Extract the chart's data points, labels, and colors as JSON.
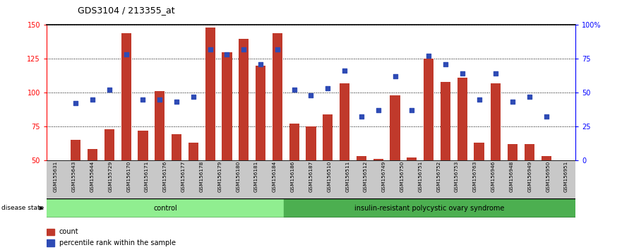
{
  "title": "GDS3104 / 213355_at",
  "samples": [
    "GSM155631",
    "GSM155643",
    "GSM155644",
    "GSM155729",
    "GSM156170",
    "GSM156171",
    "GSM156176",
    "GSM156177",
    "GSM156178",
    "GSM156179",
    "GSM156180",
    "GSM156181",
    "GSM156184",
    "GSM156186",
    "GSM156187",
    "GSM156510",
    "GSM156511",
    "GSM156512",
    "GSM156749",
    "GSM156750",
    "GSM156751",
    "GSM156752",
    "GSM156753",
    "GSM156763",
    "GSM156946",
    "GSM156948",
    "GSM156949",
    "GSM156950",
    "GSM156951"
  ],
  "bar_values": [
    65,
    58,
    73,
    144,
    72,
    101,
    69,
    63,
    148,
    130,
    140,
    120,
    144,
    77,
    75,
    84,
    107,
    53,
    51,
    98,
    52,
    125,
    108,
    111,
    63,
    107,
    62,
    62,
    53
  ],
  "dot_pct": [
    42,
    45,
    52,
    78,
    45,
    45,
    43,
    47,
    82,
    78,
    82,
    71,
    82,
    52,
    48,
    53,
    66,
    32,
    37,
    62,
    37,
    77,
    71,
    64,
    45,
    64,
    43,
    47,
    32
  ],
  "group_labels": [
    "control",
    "insulin-resistant polycystic ovary syndrome"
  ],
  "group_sizes": [
    13,
    16
  ],
  "ylim_left": [
    50,
    150
  ],
  "ylim_right": [
    0,
    100
  ],
  "yticks_left": [
    50,
    75,
    100,
    125,
    150
  ],
  "yticks_right": [
    0,
    25,
    50,
    75,
    100
  ],
  "ytick_labels_right": [
    "0",
    "25",
    "50",
    "75",
    "100%"
  ],
  "bar_color": "#c0392b",
  "dot_color": "#2e4bb5",
  "group_color_control": "#90ee90",
  "group_color_disease": "#4caf50",
  "xtick_bg": "#c8c8c8",
  "plot_bg": "#ffffff",
  "label_count": "count",
  "label_dot": "percentile rank within the sample",
  "disease_state_label": "disease state",
  "bar_bottom": 50,
  "bar_width": 0.6
}
